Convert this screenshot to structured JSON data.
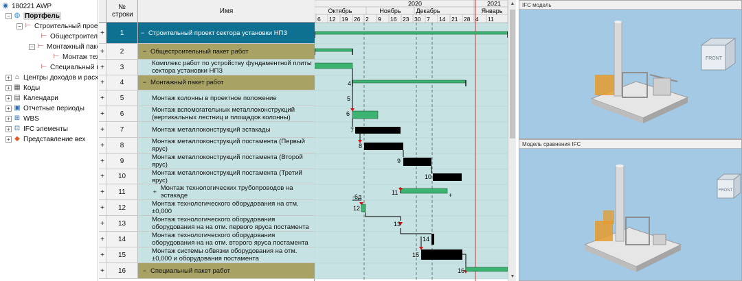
{
  "tree": {
    "items": [
      {
        "label": "180221 AWP",
        "icon": "globe-icon"
      },
      {
        "label": "Портфель",
        "icon": "portfolio-icon"
      },
      {
        "label": "Строительный проект",
        "icon": "project-icon"
      },
      {
        "label": "Общестроитель",
        "icon": "package-icon"
      },
      {
        "label": "Монтажный пакет",
        "icon": "package-icon"
      },
      {
        "label": "Монтаж техно",
        "icon": "package-icon"
      },
      {
        "label": "Специальный па",
        "icon": "package-icon"
      },
      {
        "label": "Центры доходов и расхо",
        "icon": "bank-icon"
      },
      {
        "label": "Коды",
        "icon": "codes-icon"
      },
      {
        "label": "Календари",
        "icon": "calendar-icon"
      },
      {
        "label": "Отчетные периоды",
        "icon": "periods-icon"
      },
      {
        "label": "WBS",
        "icon": "wbs-icon"
      },
      {
        "label": "IFC элементы",
        "icon": "ifc-icon"
      },
      {
        "label": "Представление вех",
        "icon": "milestone-icon"
      }
    ]
  },
  "grid": {
    "header": {
      "num": "№ строки",
      "name": "Имя"
    },
    "rows": [
      {
        "num": "1",
        "name": "Строительный проект сектора установки НПЗ",
        "toggle": "−",
        "type": "project",
        "plus": "+"
      },
      {
        "num": "2",
        "name": "Общестроительный пакет работ",
        "toggle": "−",
        "type": "package",
        "plus": "+"
      },
      {
        "num": "3",
        "name": "Комплекс работ по устройству фундаментной плиты сектора установки НПЗ",
        "toggle": "",
        "type": "task",
        "plus": "+"
      },
      {
        "num": "4",
        "name": "Монтажный пакет работ",
        "toggle": "−",
        "type": "package",
        "plus": "+"
      },
      {
        "num": "5",
        "name": "Монтаж колонны в проектное положение",
        "toggle": "",
        "type": "task",
        "plus": "+"
      },
      {
        "num": "6",
        "name": "Монтаж вспомогательных металлоконструкций (вертикальных лестниц и площадок колонны)",
        "toggle": "",
        "type": "task",
        "plus": "+"
      },
      {
        "num": "7",
        "name": "Монтаж металлоконструкций эстакады",
        "toggle": "",
        "type": "task",
        "plus": "+"
      },
      {
        "num": "8",
        "name": "Монтаж металлоконструкций постамента (Первый ярус)",
        "toggle": "",
        "type": "task",
        "plus": "+"
      },
      {
        "num": "9",
        "name": "Монтаж металлоконструкций постамента (Второй ярус)",
        "toggle": "",
        "type": "task",
        "plus": "+"
      },
      {
        "num": "10",
        "name": "Монтаж металлоконструкций постамента (Третий ярус)",
        "toggle": "",
        "type": "task",
        "plus": "+"
      },
      {
        "num": "11",
        "name": "Монтаж технологических трубопроводов на эстакаде",
        "toggle": "+",
        "type": "task",
        "plus": "+"
      },
      {
        "num": "12",
        "name": "Монтаж технологического оборудования на отм. ±0,000",
        "toggle": "",
        "type": "task",
        "plus": "+"
      },
      {
        "num": "13",
        "name": "Монтаж технологического оборудования оборудования на на отм. первого яруса постамента",
        "toggle": "",
        "type": "task",
        "plus": "+"
      },
      {
        "num": "14",
        "name": "Монтаж технологического оборудования оборудования на на отм. второго яруса постамента",
        "toggle": "",
        "type": "task",
        "plus": "+"
      },
      {
        "num": "15",
        "name": "Монтаж системы обвязки оборудования на отм. ±0,000 и оборудования постамента",
        "toggle": "",
        "type": "task",
        "plus": "+"
      },
      {
        "num": "16",
        "name": "Специальный пакет работ",
        "toggle": "−",
        "type": "package",
        "plus": "+"
      }
    ]
  },
  "gantt": {
    "years": [
      "2020",
      "2021"
    ],
    "months": [
      "Октябрь",
      "Ноябрь",
      "Декабрь",
      "Январь"
    ],
    "days": [
      "6",
      "12",
      "19",
      "26",
      "2",
      "9",
      "16",
      "23",
      "30",
      "7",
      "14",
      "21",
      "28",
      "4",
      "11"
    ],
    "bar_labels": [
      "4",
      "5",
      "6",
      "7",
      "8",
      "9",
      "10",
      "11",
      "-6д",
      "12",
      "13",
      "14",
      "15",
      "16"
    ],
    "plus_sign": "+"
  },
  "ifc_top": {
    "title": "IFC модель",
    "cube_label": "FRONT"
  },
  "ifc_bottom": {
    "title": "Модель сравнения IFC",
    "cube_label": "FRONT"
  },
  "colors": {
    "project_row": "#0f7192",
    "package_row": "#a8a265",
    "task_row": "#c7e2e2",
    "bar_green": "#3cb371",
    "bar_black": "#000000",
    "today_line": "#e03030"
  }
}
